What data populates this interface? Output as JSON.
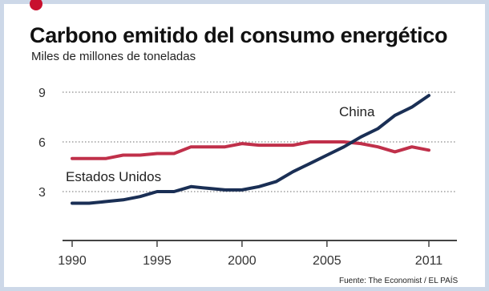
{
  "title": "Carbono emitido del consumo energético",
  "subtitle": "Miles de millones de toneladas",
  "source": "Fuente: The Economist / EL PAÍS",
  "colors": {
    "accent": "#c8102e",
    "usa": "#c0304a",
    "china": "#1a2f55",
    "grid": "#8a8a8a"
  },
  "chart_data": {
    "type": "line",
    "title": "Carbono emitido del consumo energético",
    "subtitle": "Miles de millones de toneladas",
    "xlim": [
      1990,
      2011
    ],
    "ylim": [
      0,
      9
    ],
    "yticks": [
      "9",
      "6",
      "3"
    ],
    "xticks": [
      "1990",
      "1995",
      "2000",
      "2005",
      "2011"
    ],
    "grid": true,
    "series": [
      {
        "name": "Estados Unidos",
        "x": [
          1990,
          1991,
          1992,
          1993,
          1994,
          1995,
          1996,
          1997,
          1998,
          1999,
          2000,
          2001,
          2002,
          2003,
          2004,
          2005,
          2006,
          2007,
          2008,
          2009,
          2010,
          2011
        ],
        "values": [
          5.0,
          5.0,
          5.0,
          5.2,
          5.2,
          5.3,
          5.3,
          5.7,
          5.7,
          5.7,
          5.9,
          5.8,
          5.8,
          5.8,
          6.0,
          6.0,
          6.0,
          5.9,
          5.7,
          5.4,
          5.7,
          5.5
        ]
      },
      {
        "name": "China",
        "x": [
          1990,
          1991,
          1992,
          1993,
          1994,
          1995,
          1996,
          1997,
          1998,
          1999,
          2000,
          2001,
          2002,
          2003,
          2004,
          2005,
          2006,
          2007,
          2008,
          2009,
          2010,
          2011
        ],
        "values": [
          2.3,
          2.3,
          2.4,
          2.5,
          2.7,
          3.0,
          3.0,
          3.3,
          3.2,
          3.1,
          3.1,
          3.3,
          3.6,
          4.2,
          4.7,
          5.2,
          5.7,
          6.3,
          6.8,
          7.6,
          8.1,
          8.8
        ]
      }
    ]
  }
}
